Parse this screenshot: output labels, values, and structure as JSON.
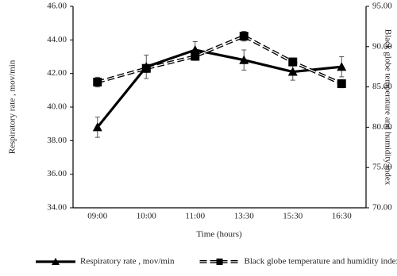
{
  "chart_data": {
    "type": "line",
    "x_label": "Time (hours)",
    "y_label": "Respiratory rate , mov/min",
    "y2_label": "Black globe temperature and humidity index",
    "categories": [
      "09:00",
      "10:00",
      "11:00",
      "13:30",
      "15:30",
      "16:30"
    ],
    "ylim": [
      34,
      46
    ],
    "yticks": [
      {
        "value": 34,
        "label": "34.00"
      },
      {
        "value": 36,
        "label": "36.00"
      },
      {
        "value": 38,
        "label": "38.00"
      },
      {
        "value": 40,
        "label": "40.00"
      },
      {
        "value": 42,
        "label": "42.00"
      },
      {
        "value": 44,
        "label": "44.00"
      },
      {
        "value": 46,
        "label": "46.00"
      }
    ],
    "y2lim": [
      70,
      95
    ],
    "y2ticks": [
      {
        "value": 70,
        "label": "70.00"
      },
      {
        "value": 75,
        "label": "75.00"
      },
      {
        "value": 80,
        "label": "80.00"
      },
      {
        "value": 85,
        "label": "85.00"
      },
      {
        "value": 90,
        "label": "90.00"
      },
      {
        "value": 95,
        "label": "95.00"
      }
    ],
    "legend": "bottom",
    "series": [
      {
        "name": "Respiratory rate , mov/min",
        "color": "#000000",
        "marker": "triangle",
        "dash": false,
        "values": [
          38.8,
          42.4,
          43.4,
          42.8,
          42.1,
          42.4
        ],
        "errors": [
          0.6,
          0.7,
          0.5,
          0.6,
          0.5,
          0.6
        ]
      },
      {
        "name": "Black globe temperature and humidity index",
        "color": "#000000",
        "marker": "square",
        "dash": true,
        "axis": "y2",
        "values": [
          85.6,
          87.3,
          88.8,
          91.3,
          88.1,
          85.4
        ],
        "errors": [
          0.6,
          0.5,
          0.5,
          0.6,
          0.5,
          0.5
        ]
      }
    ]
  }
}
